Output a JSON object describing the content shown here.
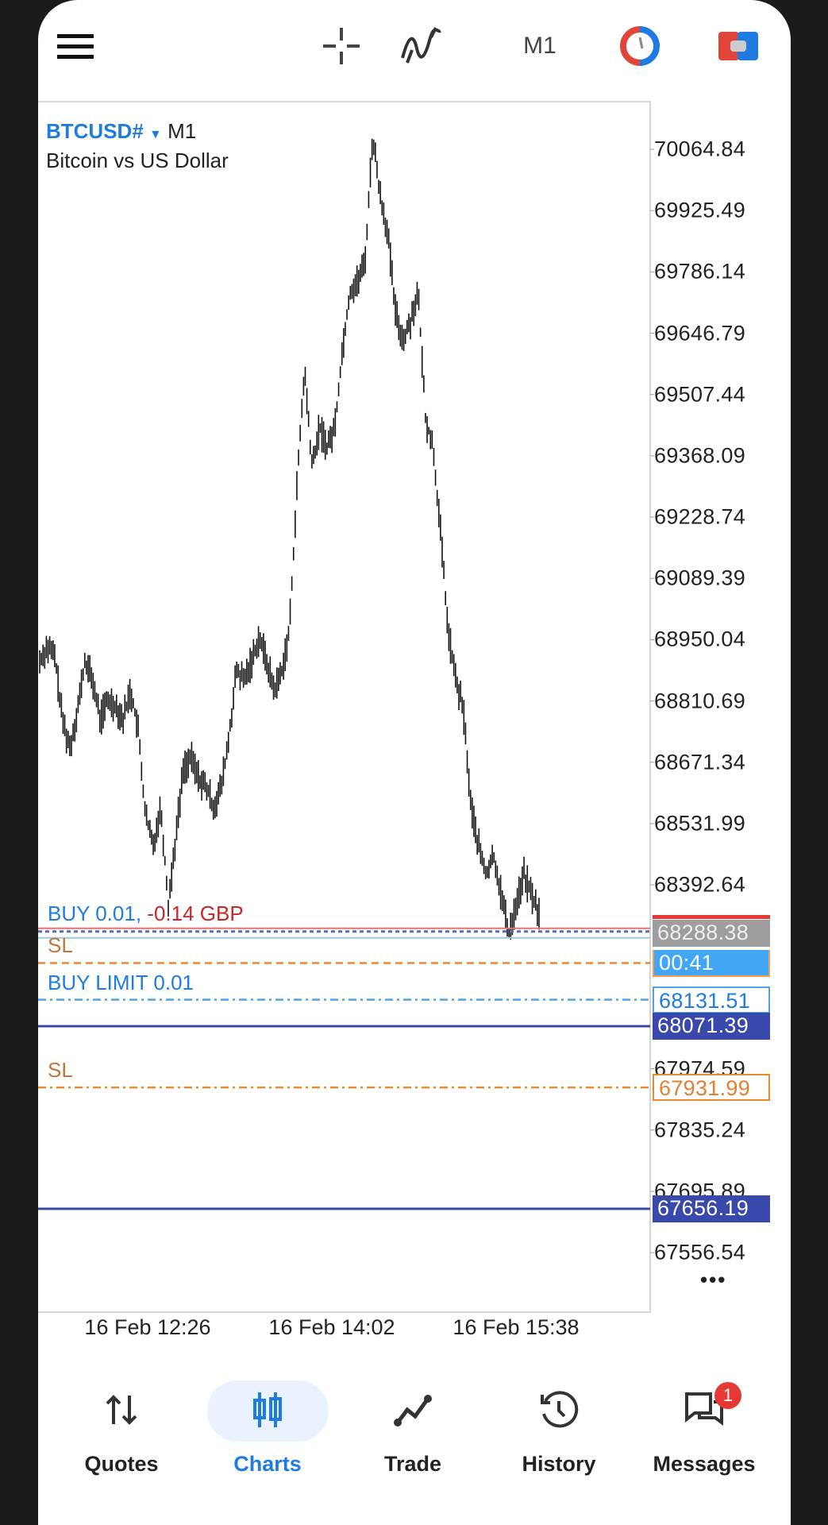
{
  "toolbar": {
    "timeframe": "M1",
    "icons": [
      "menu-icon",
      "crosshair-icon",
      "indicators-icon",
      "timeframe",
      "clock-icon",
      "one-click-trading-icon"
    ]
  },
  "symbol": {
    "name": "BTCUSD#",
    "timeframe": "M1",
    "description": "Bitcoin vs US Dollar"
  },
  "chart_data": {
    "type": "bar",
    "title": "BTCUSD# M1",
    "x_tick_labels": [
      "16 Feb 12:26",
      "16 Feb 14:02",
      "16 Feb 15:38"
    ],
    "y_tick_labels": [
      "70064.84",
      "69925.49",
      "69786.14",
      "69646.79",
      "69507.44",
      "69368.09",
      "69228.74",
      "69089.39",
      "68950.04",
      "68810.69",
      "68671.34",
      "68531.99",
      "68392.64",
      "67974.59",
      "67835.24",
      "67695.89",
      "67556.54"
    ],
    "ylim": [
      67500,
      70150
    ],
    "close_path": [
      68901,
      68934,
      68912,
      68769,
      68703,
      68791,
      68901,
      68857,
      68769,
      68813,
      68802,
      68769,
      68835,
      68747,
      68548,
      68482,
      68570,
      68349,
      68504,
      68658,
      68680,
      68636,
      68614,
      68570,
      68614,
      68725,
      68879,
      68857,
      68901,
      68957,
      68901,
      68835,
      68879,
      68968,
      69299,
      69564,
      69343,
      69432,
      69388,
      69432,
      69609,
      69741,
      69763,
      69808,
      70095,
      69962,
      69874,
      69697,
      69631,
      69675,
      69741,
      69454,
      69388,
      69189,
      68968,
      68857,
      68791,
      68570,
      68482,
      68415,
      68460,
      68371,
      68283,
      68349,
      68415,
      68371,
      68327
    ]
  },
  "levels": [
    {
      "id": "buy",
      "price": 68288.38,
      "label": "68288.38",
      "style": "position",
      "color": "#d32f2f"
    },
    {
      "id": "countdown",
      "label": "00:41"
    },
    {
      "id": "sl1",
      "price": 68215,
      "style": "dashed",
      "color": "#e8892b"
    },
    {
      "id": "buy-limit",
      "price": 68131.51,
      "label": "68131.51",
      "style": "dashdot",
      "color": "#4fa3e8"
    },
    {
      "id": "line1",
      "price": 68071.39,
      "label": "68071.39",
      "style": "solid",
      "color": "#3949ab"
    },
    {
      "id": "sl2",
      "price": 67931.99,
      "label": "67931.99",
      "style": "dashdot",
      "color": "#e8892b"
    },
    {
      "id": "line2",
      "price": 67656.19,
      "label": "67656.19",
      "style": "solid",
      "color": "#3949ab"
    }
  ],
  "chart_labels": {
    "buy": "BUY 0.01,",
    "buy_profit": "-0.14 GBP",
    "sl1": "SL",
    "buy_limit": "BUY LIMIT 0.01",
    "sl2": "SL"
  },
  "more": "•••",
  "nav": [
    {
      "label": "Quotes",
      "icon": "quotes-icon"
    },
    {
      "label": "Charts",
      "icon": "charts-icon",
      "active": true
    },
    {
      "label": "Trade",
      "icon": "trade-icon"
    },
    {
      "label": "History",
      "icon": "history-icon"
    },
    {
      "label": "Messages",
      "icon": "messages-icon",
      "badge": "1"
    }
  ],
  "colors": {
    "accent": "#1e7be0",
    "active_bg": "#eaf3fd",
    "badge": "#e53935"
  }
}
